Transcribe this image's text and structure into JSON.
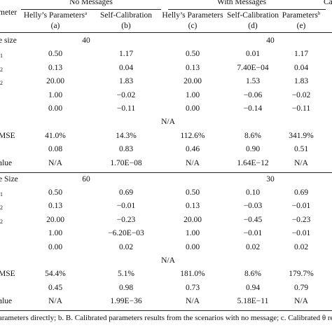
{
  "header": {
    "param_label": "meter",
    "group_no_messages": "No Messages",
    "group_with_messages": "With Messages",
    "group_cut": "Ca",
    "columns": [
      {
        "title": "Helly’s Parameters",
        "sup": "a",
        "tag": "(a)"
      },
      {
        "title": "Self-Calibration",
        "sup": "",
        "tag": "(b)"
      },
      {
        "title": "Helly’s Parameters",
        "sup": "",
        "tag": "(c)"
      },
      {
        "title": "Self-Calibration",
        "sup": "",
        "tag": "(d)"
      },
      {
        "title": "Parameters",
        "sup": "b",
        "tag": "(e)"
      }
    ]
  },
  "section1": {
    "sample_label": "e size",
    "sample_no_msg": "40",
    "sample_with_msg": "40",
    "rows": [
      {
        "label": "1",
        "values": [
          "0.50",
          "1.17",
          "0.50",
          "0.01",
          "1.17"
        ]
      },
      {
        "label": "2",
        "values": [
          "0.13",
          "0.04",
          "0.13",
          "7.40E−04",
          "0.04"
        ]
      },
      {
        "label": "2",
        "values": [
          "20.00",
          "1.83",
          "20.00",
          "1.53",
          "1.83"
        ]
      },
      {
        "label": "",
        "values": [
          "1.00",
          "−0.02",
          "1.00",
          "−0.06",
          "−0.02"
        ]
      },
      {
        "label": "",
        "values": [
          "0.00",
          "−0.11",
          "0.00",
          "−0.14",
          "−0.11"
        ]
      }
    ],
    "theta_value": "N/A",
    "rmse_label": "MSE",
    "rmse_values": [
      "41.0%",
      "14.3%",
      "112.6%",
      "8.6%",
      "341.9%"
    ],
    "r_values": [
      "0.08",
      "0.83",
      "0.46",
      "0.90",
      "0.51"
    ],
    "pvalue_label": "alue",
    "pvalue_values": [
      "N/A",
      "1.70E−08",
      "N/A",
      "1.64E−12",
      "N/A"
    ]
  },
  "section2": {
    "sample_label": "e Size",
    "sample_no_msg": "60",
    "sample_with_msg": "30",
    "rows": [
      {
        "label": "1",
        "values": [
          "0.50",
          "0.69",
          "0.50",
          "0.10",
          "0.69"
        ]
      },
      {
        "label": "2",
        "values": [
          "0.13",
          "−0.01",
          "0.13",
          "−0.03",
          "−0.01"
        ]
      },
      {
        "label": "2",
        "values": [
          "20.00",
          "−0.23",
          "20.00",
          "−0.45",
          "−0.23"
        ]
      },
      {
        "label": "",
        "values": [
          "1.00",
          "−6.20E−03",
          "1.00",
          "−0.01",
          "−0.01"
        ]
      },
      {
        "label": "",
        "values": [
          "0.00",
          "0.02",
          "0.00",
          "0.02",
          "0.02"
        ]
      }
    ],
    "theta_value": "N/A",
    "rmse_label": "MSE",
    "rmse_values": [
      "54.4%",
      "5.1%",
      "181.0%",
      "8.6%",
      "179.7%"
    ],
    "r_values": [
      "0.45",
      "0.98",
      "0.73",
      "0.94",
      "0.79"
    ],
    "pvalue_label": "alue",
    "pvalue_values": [
      "N/A",
      "1.99E−36",
      "N/A",
      "5.18E−11",
      "N/A"
    ]
  },
  "footnote": "arameters directly; b. B. Calibrated parameters results from the scenarios with no message; c. Calibrated θ results"
}
